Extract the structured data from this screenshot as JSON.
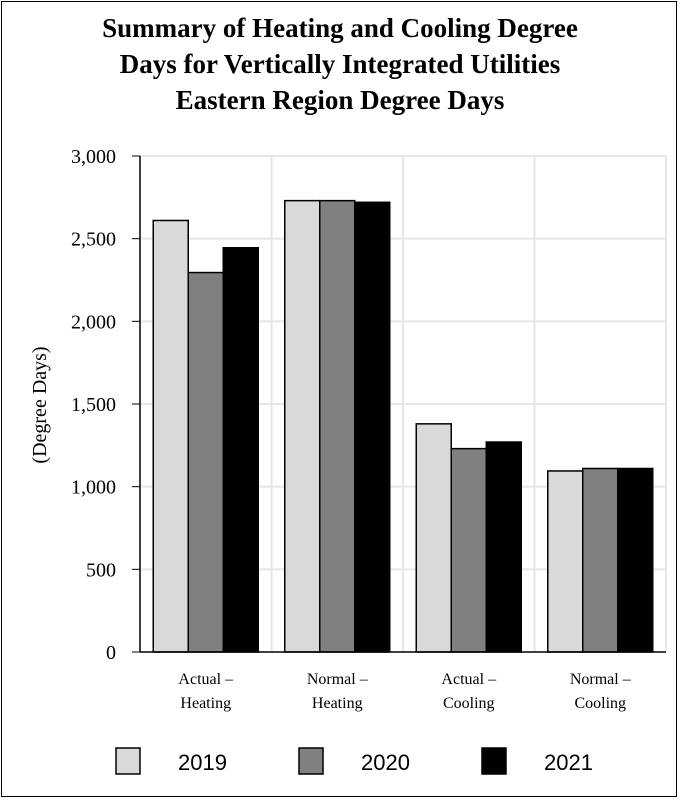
{
  "chart_data": {
    "type": "bar",
    "title": [
      "Summary of Heating and Cooling Degree",
      "Days for Vertically Integrated Utilities",
      "Eastern Region Degree Days"
    ],
    "ylabel": "(Degree Days)",
    "ylim": [
      0,
      3000
    ],
    "yticks": [
      0,
      500,
      1000,
      1500,
      2000,
      2500,
      3000
    ],
    "ytick_labels": [
      "0",
      "500",
      "1,000",
      "1,500",
      "2,000",
      "2,500",
      "3,000"
    ],
    "categories": [
      [
        "Actual –",
        "Heating"
      ],
      [
        "Normal –",
        "Heating"
      ],
      [
        "Actual –",
        "Cooling"
      ],
      [
        "Normal –",
        "Cooling"
      ]
    ],
    "series": [
      {
        "name": "2019",
        "color": "#d9d9d9",
        "values": [
          2610,
          2730,
          1380,
          1095
        ]
      },
      {
        "name": "2020",
        "color": "#808080",
        "values": [
          2295,
          2730,
          1230,
          1110
        ]
      },
      {
        "name": "2021",
        "color": "#000000",
        "values": [
          2445,
          2720,
          1270,
          1110
        ]
      }
    ],
    "grid": true,
    "legend_position": "bottom"
  }
}
